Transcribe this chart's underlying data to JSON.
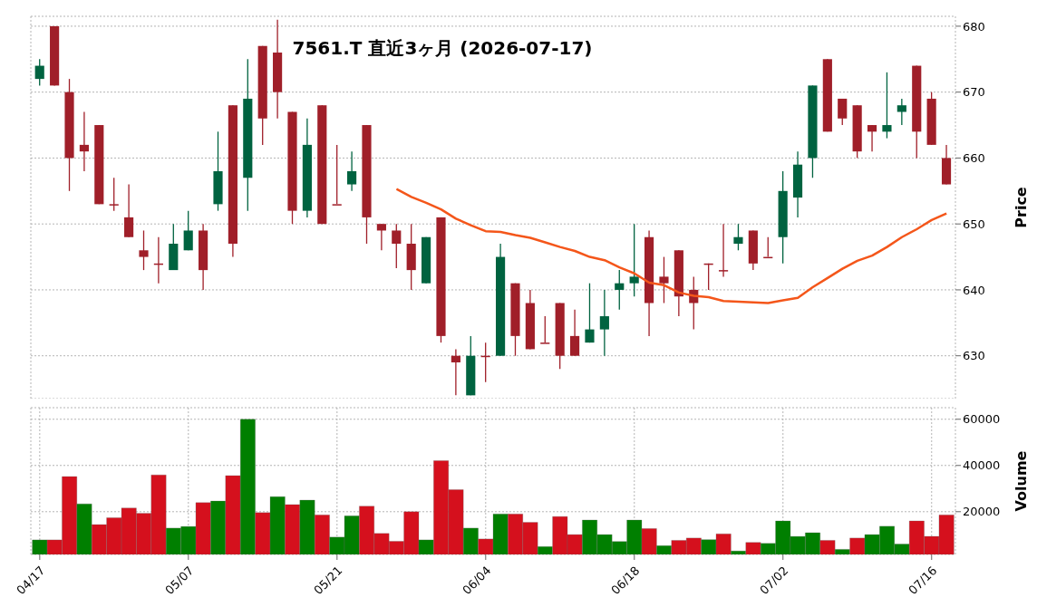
{
  "chart_data": [
    {
      "type": "candlestick",
      "title": "7561.T 直近3ヶ月 (2026-07-17)",
      "ylabel": "Price",
      "ohlc": [
        [
          672,
          675,
          671,
          674
        ],
        [
          680,
          680,
          671,
          671
        ],
        [
          670,
          672,
          655,
          660
        ],
        [
          662,
          667,
          658,
          661
        ],
        [
          665,
          665,
          653,
          653
        ],
        [
          653,
          657,
          652,
          653
        ],
        [
          651,
          656,
          648,
          648
        ],
        [
          646,
          649,
          643,
          645
        ],
        [
          644,
          648,
          641,
          644
        ],
        [
          643,
          650,
          643,
          647
        ],
        [
          646,
          652,
          646,
          649
        ],
        [
          649,
          650,
          640,
          643
        ],
        [
          653,
          664,
          652,
          658
        ],
        [
          668,
          668,
          645,
          647
        ],
        [
          657,
          675,
          652,
          669
        ],
        [
          677,
          677,
          662,
          666
        ],
        [
          676,
          681,
          666,
          670
        ],
        [
          667,
          667,
          650,
          652
        ],
        [
          652,
          666,
          651,
          662
        ],
        [
          668,
          668,
          650,
          650
        ],
        [
          653,
          662,
          653,
          653
        ],
        [
          656,
          661,
          655,
          658
        ],
        [
          665,
          665,
          647,
          651
        ],
        [
          650,
          650,
          646,
          649
        ],
        [
          649,
          650,
          643.3,
          647
        ],
        [
          647,
          650,
          640,
          643
        ],
        [
          641,
          648,
          641,
          648
        ],
        [
          651,
          651,
          632,
          633
        ],
        [
          630,
          631,
          624,
          629
        ],
        [
          624,
          633,
          624,
          630
        ],
        [
          630,
          632,
          626,
          630
        ],
        [
          630,
          647,
          630,
          645
        ],
        [
          641,
          641,
          630,
          633
        ],
        [
          638,
          640,
          631,
          631
        ],
        [
          632,
          636,
          632,
          632
        ],
        [
          638,
          638,
          628,
          630
        ],
        [
          633,
          637,
          630,
          630
        ],
        [
          632,
          641,
          632,
          634
        ],
        [
          634,
          640,
          630,
          636
        ],
        [
          640,
          643,
          637,
          641
        ],
        [
          641,
          650,
          639,
          642
        ],
        [
          648,
          649,
          633,
          638
        ],
        [
          642,
          645,
          638,
          641
        ],
        [
          646,
          646,
          636,
          639
        ],
        [
          640,
          642,
          634,
          638
        ],
        [
          644,
          644,
          640,
          644
        ],
        [
          643,
          650,
          642,
          643
        ],
        [
          647,
          650,
          646,
          648
        ],
        [
          649,
          649,
          643,
          644
        ],
        [
          645,
          648,
          645,
          645
        ],
        [
          648,
          658,
          644,
          655
        ],
        [
          654,
          661,
          651,
          659
        ],
        [
          660,
          671,
          657,
          671
        ],
        [
          675,
          675,
          664,
          664
        ],
        [
          669,
          669,
          665,
          666
        ],
        [
          668,
          668,
          660,
          661
        ],
        [
          665,
          665,
          661,
          664
        ],
        [
          664,
          673,
          663,
          665
        ],
        [
          667,
          669,
          665,
          668
        ],
        [
          674,
          674,
          660,
          664
        ],
        [
          669,
          670,
          662,
          662
        ],
        [
          660,
          662,
          656,
          656
        ]
      ],
      "colors": [
        "#006340",
        "#a01f29",
        "#a01f29",
        "#a01f29",
        "#a01f29",
        "#a01f29",
        "#a01f29",
        "#a01f29",
        "#a01f29",
        "#006340",
        "#006340",
        "#a01f29",
        "#006340",
        "#a01f29",
        "#006340",
        "#a01f29",
        "#a01f29",
        "#a01f29",
        "#006340",
        "#a01f29",
        "#a01f29",
        "#006340",
        "#a01f29",
        "#a01f29",
        "#a01f29",
        "#a01f29",
        "#006340",
        "#a01f29",
        "#a01f29",
        "#006340",
        "#a01f29",
        "#006340",
        "#a01f29",
        "#a01f29",
        "#a01f29",
        "#a01f29",
        "#a01f29",
        "#006340",
        "#006340",
        "#006340",
        "#006340",
        "#a01f29",
        "#a01f29",
        "#a01f29",
        "#a01f29",
        "#a01f29",
        "#a01f29",
        "#006340",
        "#a01f29",
        "#a01f29",
        "#006340",
        "#006340",
        "#006340",
        "#a01f29",
        "#a01f29",
        "#a01f29",
        "#a01f29",
        "#006340",
        "#006340",
        "#a01f29",
        "#a01f29",
        "#a01f29"
      ],
      "series": [
        {
          "type": "line",
          "color": "#f4561a",
          "values": [
            null,
            null,
            null,
            null,
            null,
            null,
            null,
            null,
            null,
            null,
            null,
            null,
            null,
            null,
            null,
            null,
            null,
            null,
            null,
            null,
            null,
            null,
            null,
            null,
            655.3,
            654.1,
            653.2,
            652.2,
            650.8,
            649.8,
            648.9,
            648.8,
            648.3,
            647.9,
            647.2,
            646.5,
            645.9,
            645.0,
            644.5,
            643.4,
            642.5,
            641.1,
            640.7,
            639.6,
            639.1,
            638.9,
            638.3,
            638.2,
            638.1,
            638.0,
            638.4,
            638.8,
            640.4,
            641.8,
            643.2,
            644.4,
            645.2,
            646.5,
            648.0,
            649.2,
            650.6,
            651.6
          ]
        }
      ],
      "ylim": [
        623.5,
        681.5
      ],
      "yticks": [
        630,
        640,
        650,
        660,
        670,
        680
      ],
      "grid": true,
      "tick_labels": "y"
    },
    {
      "type": "bar",
      "ylabel": "Volume",
      "categories": [
        "04/17",
        null,
        null,
        null,
        null,
        null,
        null,
        null,
        null,
        null,
        "05/07",
        null,
        null,
        null,
        null,
        null,
        null,
        null,
        null,
        null,
        "05/21",
        null,
        null,
        null,
        null,
        null,
        null,
        null,
        null,
        null,
        "06/04",
        null,
        null,
        null,
        null,
        null,
        null,
        null,
        null,
        null,
        "06/18",
        null,
        null,
        null,
        null,
        null,
        null,
        null,
        null,
        null,
        "07/02",
        null,
        null,
        null,
        null,
        null,
        null,
        null,
        null,
        null,
        "07/16",
        null
      ],
      "values": [
        7800,
        7800,
        35200,
        23400,
        14400,
        17400,
        21600,
        19300,
        35900,
        12900,
        13600,
        23900,
        24600,
        35600,
        60000,
        19600,
        26500,
        23100,
        25000,
        18600,
        9000,
        18200,
        22400,
        10600,
        7200,
        20000,
        7800,
        42100,
        29500,
        12900,
        8200,
        19000,
        19000,
        15400,
        4900,
        17900,
        10100,
        16400,
        10100,
        7100,
        16400,
        12700,
        5300,
        7600,
        8600,
        7900,
        10400,
        3000,
        6700,
        6300,
        16000,
        9300,
        10900,
        7600,
        3700,
        8600,
        10100,
        13700,
        6000,
        16000,
        9300,
        18600
      ],
      "colors": [
        "#007f00",
        "#d5101d",
        "#d5101d",
        "#007f00",
        "#d5101d",
        "#d5101d",
        "#d5101d",
        "#d5101d",
        "#d5101d",
        "#007f00",
        "#007f00",
        "#d5101d",
        "#007f00",
        "#d5101d",
        "#007f00",
        "#d5101d",
        "#007f00",
        "#d5101d",
        "#007f00",
        "#d5101d",
        "#007f00",
        "#007f00",
        "#d5101d",
        "#d5101d",
        "#d5101d",
        "#d5101d",
        "#007f00",
        "#d5101d",
        "#d5101d",
        "#007f00",
        "#d5101d",
        "#007f00",
        "#d5101d",
        "#d5101d",
        "#007f00",
        "#d5101d",
        "#d5101d",
        "#007f00",
        "#007f00",
        "#007f00",
        "#007f00",
        "#d5101d",
        "#007f00",
        "#d5101d",
        "#d5101d",
        "#007f00",
        "#d5101d",
        "#007f00",
        "#d5101d",
        "#007f00",
        "#007f00",
        "#007f00",
        "#007f00",
        "#d5101d",
        "#007f00",
        "#d5101d",
        "#007f00",
        "#007f00",
        "#007f00",
        "#d5101d",
        "#d5101d",
        "#d5101d"
      ],
      "ylim": [
        1500,
        65000
      ],
      "yticks": [
        20000,
        40000,
        60000
      ],
      "grid": true
    }
  ]
}
